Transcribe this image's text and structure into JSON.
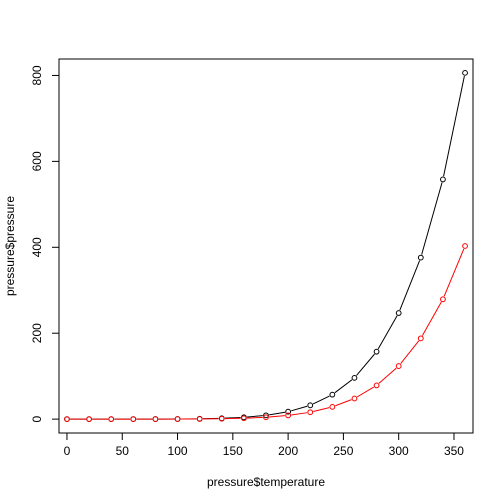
{
  "chart_data": {
    "type": "line",
    "xlabel": "pressure$temperature",
    "ylabel": "pressure$pressure",
    "xlim": [
      -7.2,
      367.2
    ],
    "ylim": [
      -32.3,
      838.3
    ],
    "x_ticks": [
      0,
      50,
      100,
      150,
      200,
      250,
      300,
      350
    ],
    "y_ticks": [
      0,
      200,
      400,
      600,
      800
    ],
    "x_tick_labels": [
      "0",
      "50",
      "100",
      "150",
      "200",
      "250",
      "300",
      "350"
    ],
    "y_tick_labels": [
      "0",
      "200",
      "400",
      "600",
      "800"
    ],
    "x": [
      0,
      20,
      40,
      60,
      80,
      100,
      120,
      140,
      160,
      180,
      200,
      220,
      240,
      260,
      280,
      300,
      320,
      340,
      360
    ],
    "series": [
      {
        "color": "#000000",
        "marker": "open-circle",
        "values": [
          0.0002,
          0.0012,
          0.006,
          0.03,
          0.09,
          0.27,
          0.75,
          1.85,
          4.2,
          8.8,
          17.3,
          32.1,
          57.0,
          96.0,
          157.0,
          247.0,
          376.0,
          558.0,
          806.0
        ]
      },
      {
        "color": "#ff0000",
        "marker": "open-circle",
        "values": [
          0.0001,
          0.0006,
          0.003,
          0.015,
          0.045,
          0.135,
          0.375,
          0.925,
          2.1,
          4.4,
          8.65,
          16.05,
          28.5,
          48.0,
          78.5,
          123.5,
          188.0,
          279.0,
          403.0
        ]
      }
    ],
    "grid": false,
    "legend": "none"
  }
}
